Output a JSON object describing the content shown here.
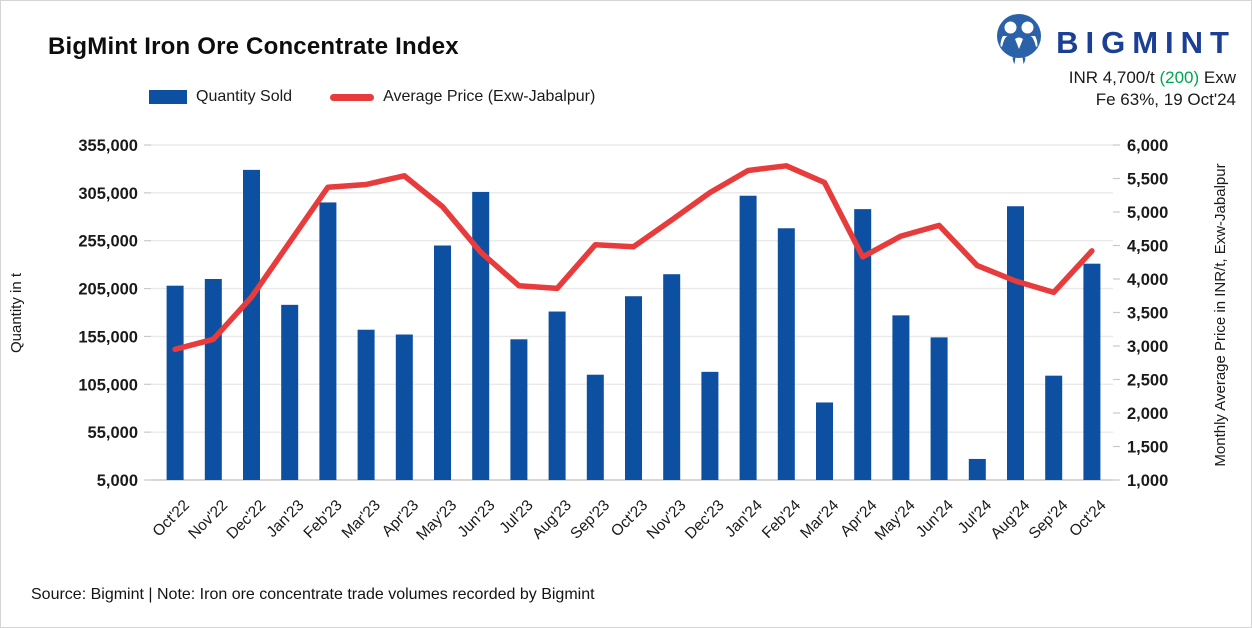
{
  "header": {
    "title": "BigMint Iron Ore Concentrate Index",
    "brand": "BIGMINT",
    "brand_color": "#1b3f94",
    "price_prefix": "INR 4,700/t",
    "price_change": "(200)",
    "price_change_color": "#00a651",
    "price_suffix": "Exw",
    "spec_line": "Fe 63%, 19 Oct'24"
  },
  "legend": [
    {
      "label": "Quantity Sold",
      "marker": "bar-swatch",
      "color": "#0d4fa1"
    },
    {
      "label": "Average Price (Exw-Jabalpur)",
      "marker": "line-swatch",
      "color": "#e73b3c"
    }
  ],
  "footer": "Source: Bigmint | Note: Iron ore concentrate trade volumes recorded by Bigmint",
  "chart_data": {
    "type": "bar",
    "subtype": "bar+line dual axis",
    "grid": "horizontal only",
    "legend_position": "top",
    "categories": [
      "Oct'22",
      "Nov'22",
      "Dec'22",
      "Jan'23",
      "Feb'23",
      "Mar'23",
      "Apr'23",
      "May'23",
      "Jun'23",
      "Jul'23",
      "Aug'23",
      "Sep'23",
      "Oct'23",
      "Nov'23",
      "Dec'23",
      "Jan'24",
      "Feb'24",
      "Mar'24",
      "Apr'24",
      "May'24",
      "Jun'24",
      "Jul'24",
      "Aug'24",
      "Sep'24",
      "Oct'24"
    ],
    "series": [
      {
        "name": "Quantity Sold",
        "type": "bar",
        "axis": "left",
        "color": "#0d4fa1",
        "values": [
          208000,
          215000,
          329000,
          188000,
          295000,
          162000,
          157000,
          250000,
          306000,
          152000,
          181000,
          115000,
          197000,
          220000,
          118000,
          302000,
          268000,
          86000,
          288000,
          177000,
          154000,
          27000,
          291000,
          114000,
          231000
        ]
      },
      {
        "name": "Average Price (Exw-Jabalpur)",
        "type": "line",
        "axis": "right",
        "color": "#e73b3c",
        "values": [
          2950,
          3100,
          3730,
          4550,
          5370,
          5410,
          5540,
          5080,
          4400,
          3900,
          3860,
          4510,
          4480,
          4880,
          5290,
          5620,
          5690,
          5440,
          4330,
          4640,
          4800,
          4200,
          3970,
          3800,
          4420
        ]
      }
    ],
    "left_axis": {
      "title": "Quantity in t",
      "min": 5000,
      "max": 355000,
      "ticks": [
        5000,
        55000,
        105000,
        155000,
        205000,
        255000,
        305000,
        355000
      ]
    },
    "right_axis": {
      "title": "Monthly Average Price in INR/t, Exw-Jabalpur",
      "min": 1000,
      "max": 6000,
      "ticks": [
        1000,
        1500,
        2000,
        2500,
        3000,
        3500,
        4000,
        4500,
        5000,
        5500,
        6000
      ]
    }
  }
}
